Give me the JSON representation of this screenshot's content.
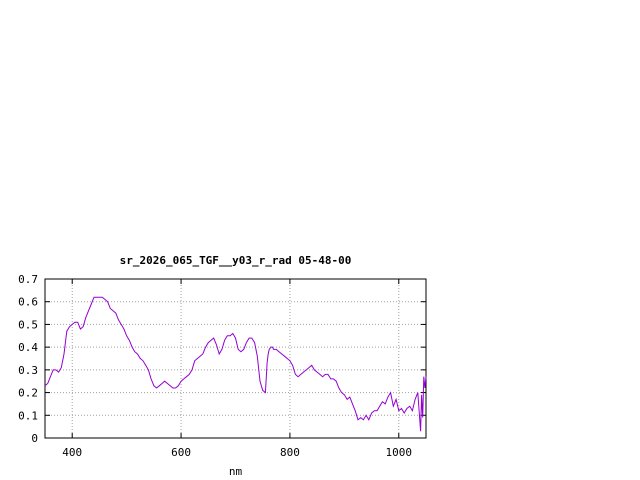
{
  "chart_data": {
    "type": "line",
    "title": "sr_2026_065_TGF__y03_r_rad 05-48-00",
    "xlabel": "nm",
    "ylabel": "",
    "xlim": [
      350,
      1050
    ],
    "ylim": [
      0,
      0.7
    ],
    "xticks": [
      400,
      600,
      800,
      1000
    ],
    "xtick_labels": [
      "400",
      "600",
      "800",
      "1000"
    ],
    "yticks": [
      0,
      0.1,
      0.2,
      0.3,
      0.4,
      0.5,
      0.6,
      0.7
    ],
    "ytick_labels": [
      "0",
      "0.1",
      "0.2",
      "0.3",
      "0.4",
      "0.5",
      "0.6",
      "0.7"
    ],
    "grid": true,
    "line_color": "#9400d3",
    "series": [
      {
        "x": [
          350,
          355,
          360,
          365,
          370,
          375,
          380,
          385,
          390,
          395,
          400,
          405,
          410,
          415,
          420,
          425,
          430,
          435,
          440,
          445,
          450,
          455,
          460,
          465,
          470,
          475,
          480,
          485,
          490,
          495,
          500,
          505,
          510,
          515,
          520,
          525,
          530,
          535,
          540,
          545,
          550,
          555,
          560,
          565,
          570,
          575,
          580,
          585,
          590,
          595,
          600,
          605,
          610,
          615,
          620,
          625,
          630,
          635,
          640,
          645,
          650,
          655,
          660,
          665,
          670,
          675,
          680,
          685,
          690,
          695,
          700,
          705,
          710,
          715,
          720,
          725,
          730,
          735,
          740,
          745,
          750,
          755,
          758,
          760,
          762,
          765,
          768,
          770,
          775,
          780,
          785,
          790,
          795,
          800,
          805,
          810,
          815,
          820,
          825,
          830,
          835,
          840,
          845,
          850,
          855,
          860,
          865,
          870,
          875,
          880,
          885,
          890,
          895,
          900,
          905,
          910,
          915,
          920,
          925,
          930,
          935,
          940,
          945,
          950,
          955,
          960,
          965,
          970,
          975,
          980,
          985,
          990,
          995,
          1000,
          1005,
          1010,
          1015,
          1020,
          1025,
          1030,
          1035,
          1040,
          1042,
          1044,
          1046,
          1048,
          1050
        ],
        "y": [
          0.23,
          0.24,
          0.27,
          0.3,
          0.3,
          0.29,
          0.31,
          0.37,
          0.47,
          0.49,
          0.5,
          0.51,
          0.51,
          0.48,
          0.49,
          0.53,
          0.56,
          0.59,
          0.62,
          0.62,
          0.62,
          0.62,
          0.61,
          0.6,
          0.57,
          0.56,
          0.55,
          0.52,
          0.5,
          0.48,
          0.45,
          0.43,
          0.4,
          0.38,
          0.37,
          0.35,
          0.34,
          0.32,
          0.3,
          0.26,
          0.23,
          0.22,
          0.23,
          0.24,
          0.25,
          0.24,
          0.23,
          0.22,
          0.22,
          0.23,
          0.25,
          0.26,
          0.27,
          0.28,
          0.3,
          0.34,
          0.35,
          0.36,
          0.37,
          0.4,
          0.42,
          0.43,
          0.44,
          0.41,
          0.37,
          0.39,
          0.43,
          0.45,
          0.45,
          0.46,
          0.44,
          0.39,
          0.38,
          0.39,
          0.42,
          0.44,
          0.44,
          0.42,
          0.36,
          0.25,
          0.21,
          0.2,
          0.33,
          0.37,
          0.39,
          0.4,
          0.4,
          0.39,
          0.39,
          0.38,
          0.37,
          0.36,
          0.35,
          0.34,
          0.32,
          0.28,
          0.27,
          0.28,
          0.29,
          0.3,
          0.31,
          0.32,
          0.3,
          0.29,
          0.28,
          0.27,
          0.28,
          0.28,
          0.26,
          0.26,
          0.25,
          0.22,
          0.2,
          0.19,
          0.17,
          0.18,
          0.15,
          0.12,
          0.08,
          0.09,
          0.08,
          0.1,
          0.08,
          0.11,
          0.12,
          0.12,
          0.14,
          0.16,
          0.15,
          0.18,
          0.2,
          0.14,
          0.17,
          0.12,
          0.13,
          0.11,
          0.13,
          0.14,
          0.12,
          0.17,
          0.2,
          0.03,
          0.19,
          0.09,
          0.27,
          0.22,
          0.27
        ]
      }
    ]
  }
}
